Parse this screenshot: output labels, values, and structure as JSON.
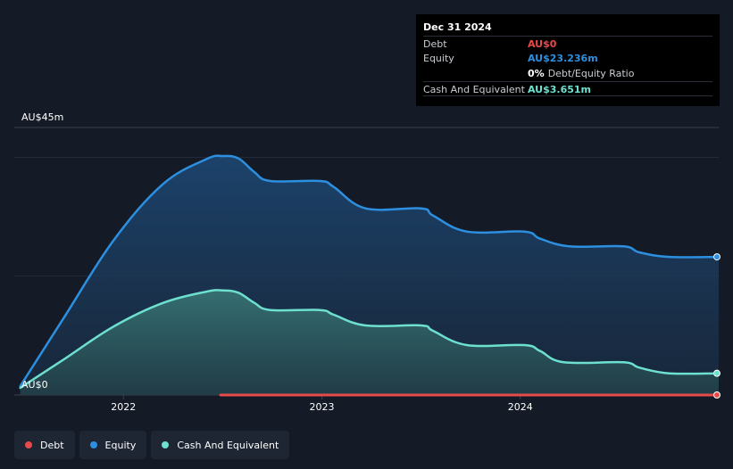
{
  "tooltip": {
    "date": "Dec 31 2024",
    "rows": {
      "debt": {
        "label": "Debt",
        "value": "AU$0"
      },
      "equity": {
        "label": "Equity",
        "value": "AU$23.236m"
      },
      "ratio": {
        "value": "0%",
        "label": "Debt/Equity Ratio"
      },
      "cash": {
        "label": "Cash And Equivalent",
        "value": "AU$3.651m"
      }
    }
  },
  "legend": [
    {
      "label": "Debt",
      "color": "#e64a4a"
    },
    {
      "label": "Equity",
      "color": "#2d8fe0"
    },
    {
      "label": "Cash And Equivalent",
      "color": "#6de0cf"
    }
  ],
  "colors": {
    "debt": "#e64a4a",
    "equity": "#2d8fe0",
    "cash": "#6de0cf",
    "background": "#151b26"
  },
  "chart_data": {
    "type": "area",
    "y_top_label": "AU$45m",
    "y_bottom_label": "AU$0",
    "ylim": [
      0,
      45
    ],
    "xlim": [
      2021.45,
      2025.0
    ],
    "x_ticks": [
      {
        "value": 2022.0,
        "label": "2022"
      },
      {
        "value": 2023.0,
        "label": "2023"
      },
      {
        "value": 2024.0,
        "label": "2024"
      }
    ],
    "gridlines": [
      0,
      20,
      40,
      45
    ],
    "series": [
      {
        "name": "Equity",
        "color": "#2d8fe0",
        "points": [
          [
            2021.48,
            1.5
          ],
          [
            2021.7,
            13
          ],
          [
            2021.95,
            26
          ],
          [
            2022.2,
            35.5
          ],
          [
            2022.42,
            39.7
          ],
          [
            2022.5,
            40.2
          ],
          [
            2022.58,
            39.8
          ],
          [
            2022.66,
            37.5
          ],
          [
            2022.74,
            36.0
          ],
          [
            2022.99,
            36.0
          ],
          [
            2023.06,
            35.0
          ],
          [
            2023.22,
            31.4
          ],
          [
            2023.5,
            31.4
          ],
          [
            2023.56,
            30.2
          ],
          [
            2023.73,
            27.5
          ],
          [
            2024.02,
            27.5
          ],
          [
            2024.1,
            26.3
          ],
          [
            2024.25,
            25.0
          ],
          [
            2024.52,
            25.0
          ],
          [
            2024.6,
            24.0
          ],
          [
            2024.75,
            23.236
          ],
          [
            2025.0,
            23.236
          ]
        ]
      },
      {
        "name": "Cash And Equivalent",
        "color": "#6de0cf",
        "points": [
          [
            2021.48,
            1.2
          ],
          [
            2021.7,
            6
          ],
          [
            2021.95,
            11.5
          ],
          [
            2022.2,
            15.5
          ],
          [
            2022.42,
            17.4
          ],
          [
            2022.5,
            17.6
          ],
          [
            2022.58,
            17.2
          ],
          [
            2022.66,
            15.5
          ],
          [
            2022.74,
            14.3
          ],
          [
            2022.99,
            14.3
          ],
          [
            2023.06,
            13.5
          ],
          [
            2023.22,
            11.7
          ],
          [
            2023.5,
            11.7
          ],
          [
            2023.56,
            10.8
          ],
          [
            2023.73,
            8.4
          ],
          [
            2024.02,
            8.4
          ],
          [
            2024.1,
            7.4
          ],
          [
            2024.22,
            5.5
          ],
          [
            2024.52,
            5.5
          ],
          [
            2024.6,
            4.6
          ],
          [
            2024.75,
            3.651
          ],
          [
            2025.0,
            3.651
          ]
        ]
      },
      {
        "name": "Debt",
        "color": "#e64a4a",
        "points": [
          [
            2022.49,
            0
          ],
          [
            2025.0,
            0
          ]
        ]
      }
    ]
  }
}
